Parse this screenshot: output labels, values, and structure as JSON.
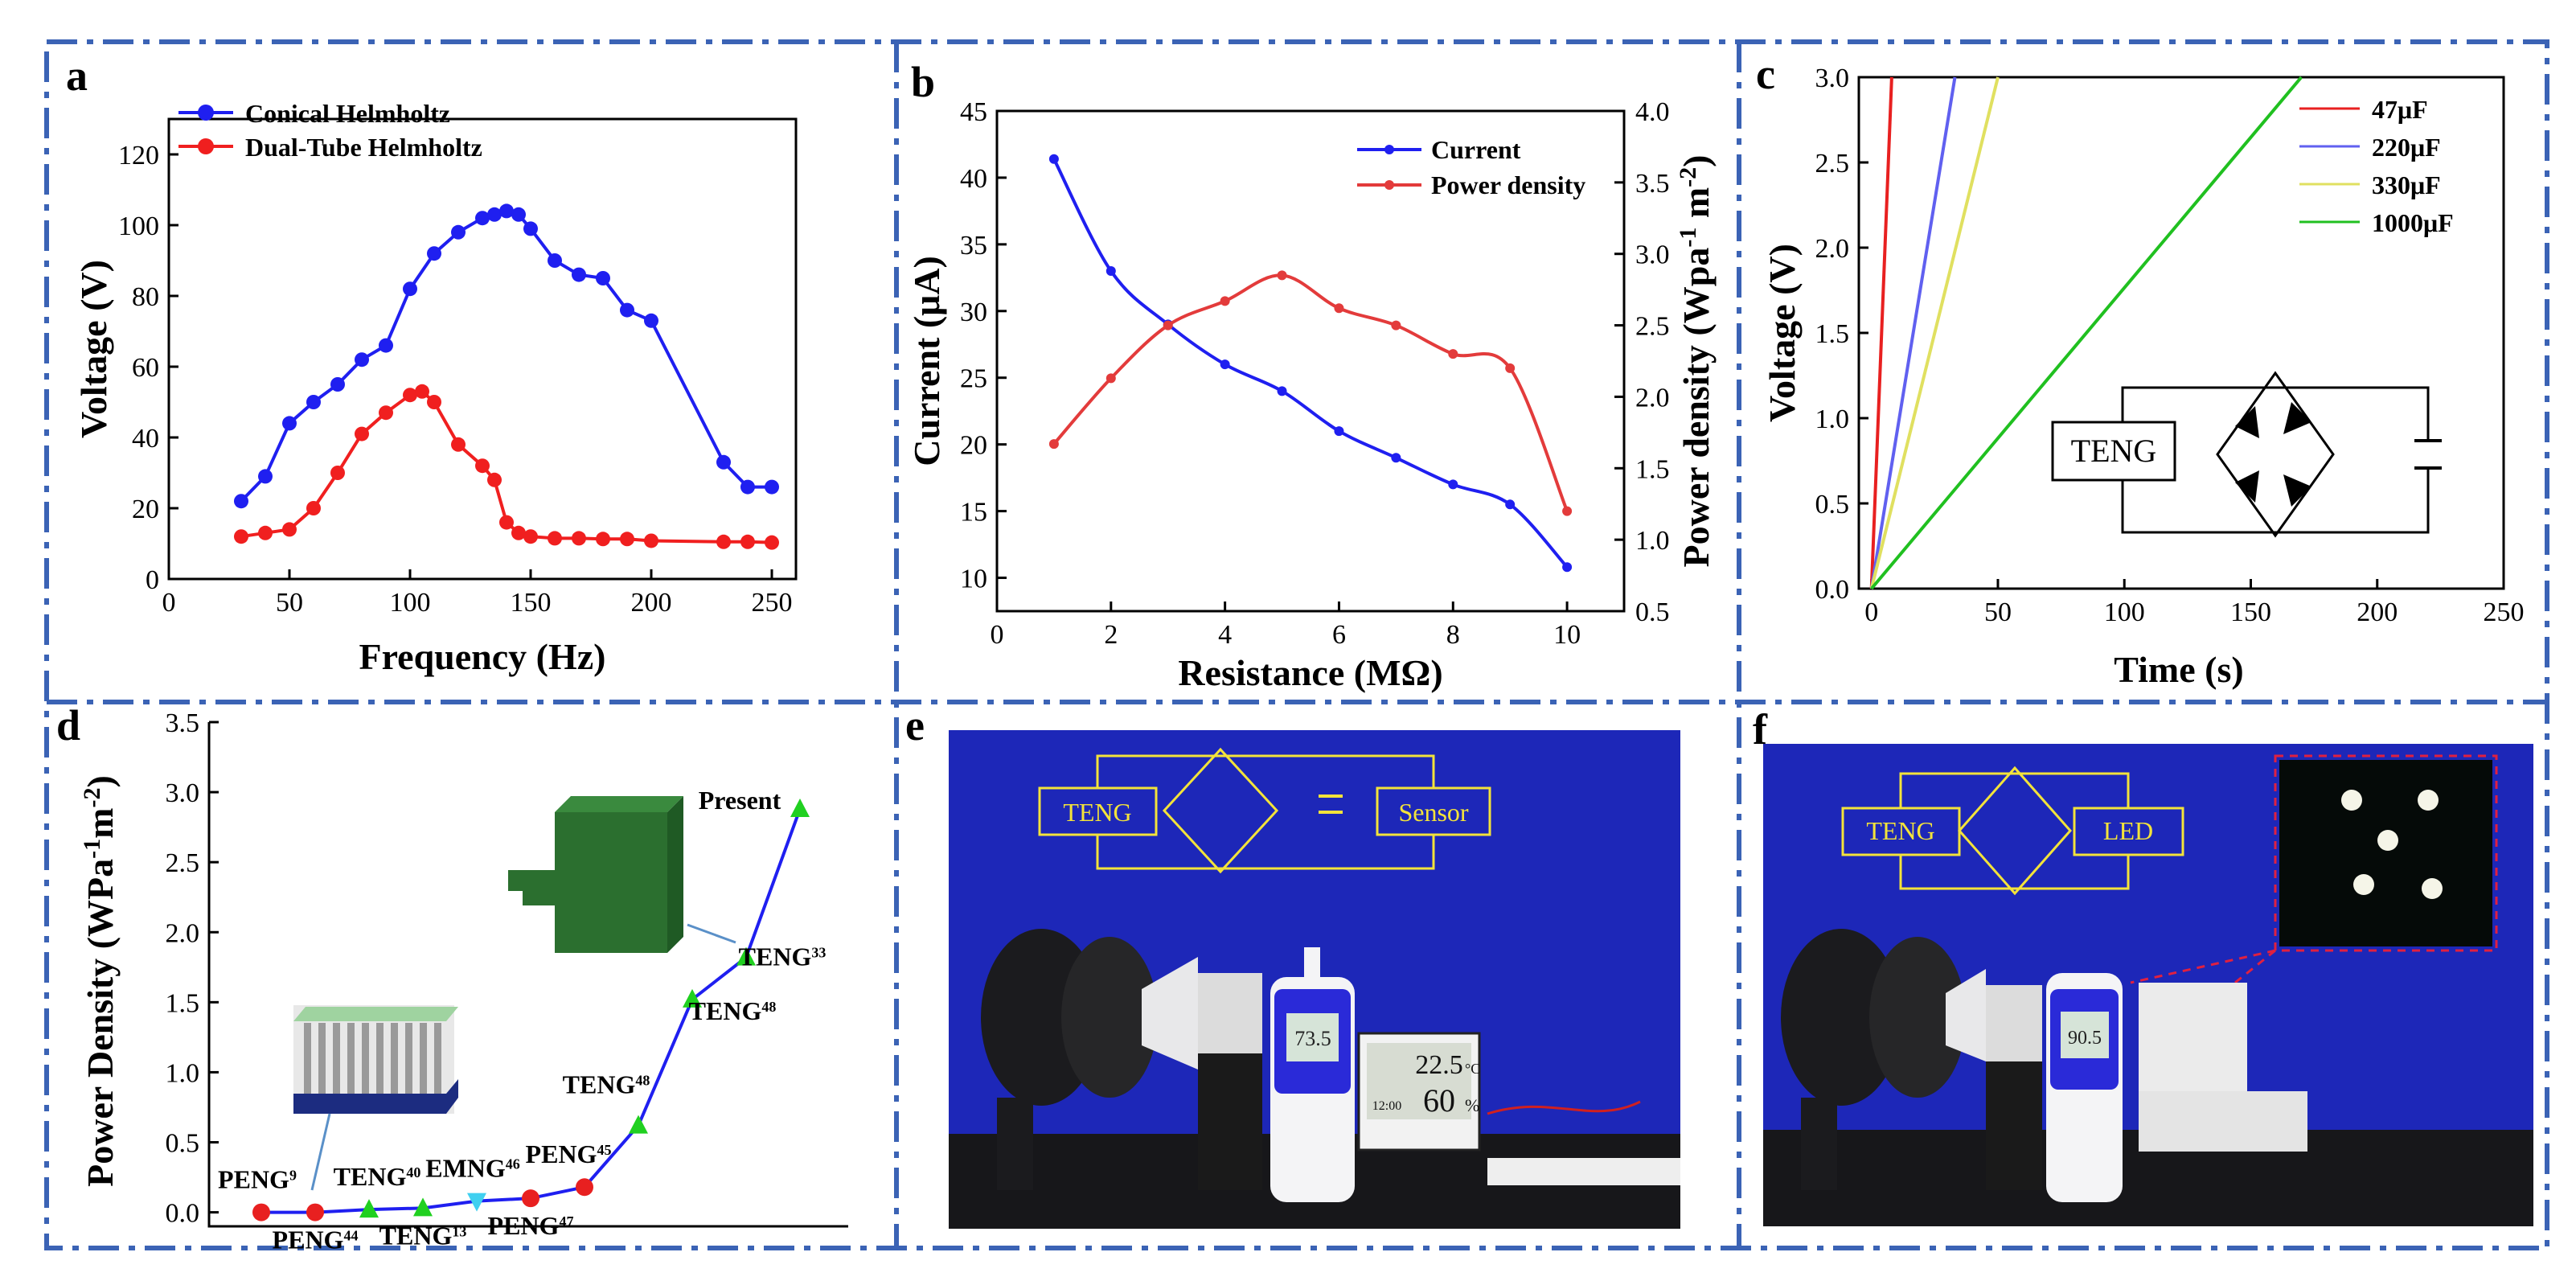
{
  "panels": {
    "a": "a",
    "b": "b",
    "c": "c",
    "d": "d",
    "e": "e",
    "f": "f"
  },
  "chart_data": [
    {
      "panel": "a",
      "type": "line",
      "xlabel": "Frequency (Hz)",
      "ylabel": "Voltage (V)",
      "xlim": [
        0,
        260
      ],
      "ylim": [
        0,
        130
      ],
      "xticks": [
        0,
        50,
        100,
        150,
        200,
        250
      ],
      "yticks": [
        0,
        20,
        40,
        60,
        80,
        100,
        120
      ],
      "legend_position": "top-left",
      "series": [
        {
          "name": "Conical Helmholtz",
          "color": "#1f1ff0",
          "x": [
            30,
            40,
            50,
            60,
            70,
            80,
            90,
            100,
            110,
            120,
            130,
            135,
            140,
            145,
            150,
            160,
            170,
            180,
            190,
            200,
            230,
            240,
            250
          ],
          "y": [
            22,
            29,
            44,
            50,
            55,
            62,
            66,
            82,
            92,
            98,
            102,
            103,
            104,
            103,
            99,
            90,
            86,
            85,
            76,
            73,
            33,
            26,
            26
          ]
        },
        {
          "name": "Dual-Tube Helmholtz",
          "color": "#f01f1f",
          "x": [
            30,
            40,
            50,
            60,
            70,
            80,
            90,
            100,
            105,
            110,
            120,
            130,
            135,
            140,
            145,
            150,
            160,
            170,
            180,
            190,
            200,
            230,
            240,
            250
          ],
          "y": [
            12,
            13,
            14,
            20,
            30,
            41,
            47,
            52,
            53,
            50,
            38,
            32,
            28,
            16,
            13,
            12,
            11.5,
            11.5,
            11.3,
            11.3,
            10.8,
            10.5,
            10.5,
            10.3
          ]
        }
      ]
    },
    {
      "panel": "b",
      "type": "line",
      "xlabel": "Resistance (MΩ)",
      "ylabel": "Current (μA)",
      "ylabel_right": "Power density (Wpa-1 m-2)",
      "ylabel_right_parts": {
        "a": "Power density (Wpa",
        "b": "-1",
        "c": " m",
        "d": "-2",
        "e": ")"
      },
      "xlim": [
        0,
        11
      ],
      "ylim": [
        7.5,
        45
      ],
      "ylim_right": [
        0.5,
        4.0
      ],
      "xticks": [
        0,
        2,
        4,
        6,
        8,
        10
      ],
      "yticks": [
        10,
        15,
        20,
        25,
        30,
        35,
        40,
        45
      ],
      "yticks_right": [
        "0.5",
        "1.0",
        "1.5",
        "2.0",
        "2.5",
        "3.0",
        "3.5",
        "4.0"
      ],
      "legend_position": "top-right",
      "series": [
        {
          "name": "Current",
          "color": "#1f1ff0",
          "axis": "left",
          "x": [
            1,
            2,
            3,
            4,
            5,
            6,
            7,
            8,
            9,
            10
          ],
          "y": [
            41.4,
            33,
            29,
            26,
            24,
            21,
            19,
            17,
            15.5,
            10.8
          ]
        },
        {
          "name": "Power density",
          "color": "#e33b3b",
          "axis": "right",
          "x": [
            1,
            2,
            3,
            4,
            5,
            6,
            7,
            8,
            9,
            10
          ],
          "y": [
            1.67,
            2.13,
            2.5,
            2.67,
            2.85,
            2.62,
            2.5,
            2.3,
            2.2,
            1.2
          ]
        }
      ]
    },
    {
      "panel": "c",
      "type": "line",
      "xlabel": "Time (s)",
      "ylabel": "Voltage (V)",
      "xlim": [
        -5,
        250
      ],
      "ylim": [
        0,
        3.0
      ],
      "xticks": [
        0,
        50,
        100,
        150,
        200,
        250
      ],
      "yticks": [
        "0.0",
        "0.5",
        "1.0",
        "1.5",
        "2.0",
        "2.5",
        "3.0"
      ],
      "legend_position": "top-right",
      "inset": {
        "teng_label": "TENG"
      },
      "series": [
        {
          "name": "47μF",
          "color": "#e82020",
          "x": [
            0,
            8
          ],
          "y": [
            0,
            3.0
          ]
        },
        {
          "name": "220μF",
          "color": "#6060f0",
          "x": [
            0,
            33
          ],
          "y": [
            0,
            3.0
          ]
        },
        {
          "name": "330μF",
          "color": "#e0e060",
          "x": [
            0,
            50
          ],
          "y": [
            0,
            3.0
          ]
        },
        {
          "name": "1000μF",
          "color": "#20c020",
          "x": [
            0,
            170
          ],
          "y": [
            0,
            3.0
          ]
        }
      ]
    },
    {
      "panel": "d",
      "type": "line",
      "xlabel": "",
      "ylabel": "Power Density (WPa-1m-2)",
      "ylabel_parts": {
        "a": "Power Density (WPa",
        "b": "-1",
        "c": "m",
        "d": "-2",
        "e": ")"
      },
      "ylim": [
        -0.1,
        3.5
      ],
      "yticks": [
        "0.0",
        "0.5",
        "1.0",
        "1.5",
        "2.0",
        "2.5",
        "3.0",
        "3.5"
      ],
      "points": [
        {
          "label": "PENG",
          "ref": "9",
          "y": 0.0,
          "marker": "circle",
          "color": "#e82020"
        },
        {
          "label": "PENG",
          "ref": "44",
          "y": 0.0,
          "marker": "circle",
          "color": "#e82020"
        },
        {
          "label": "TENG",
          "ref": "40",
          "y": 0.02,
          "marker": "triangle",
          "color": "#20d020"
        },
        {
          "label": "TENG",
          "ref": "13",
          "y": 0.03,
          "marker": "triangle",
          "color": "#20d020"
        },
        {
          "label": "EMNG",
          "ref": "46",
          "y": 0.08,
          "marker": "triangle-down",
          "color": "#40d0f0"
        },
        {
          "label": "PENG",
          "ref": "47",
          "y": 0.1,
          "marker": "circle",
          "color": "#e82020"
        },
        {
          "label": "PENG",
          "ref": "45",
          "y": 0.18,
          "marker": "circle",
          "color": "#e82020"
        },
        {
          "label": "TENG",
          "ref": "48",
          "y": 0.62,
          "marker": "triangle",
          "color": "#20d020"
        },
        {
          "label": "TENG",
          "ref": "48",
          "y": 1.52,
          "marker": "triangle",
          "color": "#20d020"
        },
        {
          "label": "TENG",
          "ref": "33",
          "y": 1.82,
          "marker": "triangle",
          "color": "#20d020"
        },
        {
          "label": "Present",
          "ref": "",
          "y": 2.88,
          "marker": "triangle",
          "color": "#20d020"
        }
      ]
    }
  ],
  "photo_e": {
    "teng": "TENG",
    "sensor": "Sensor",
    "meter_reading": "73.5",
    "temp": "22.5",
    "temp_unit": "°C",
    "hum": "60",
    "hum_unit": "%",
    "clock": "12:00"
  },
  "photo_f": {
    "teng": "TENG",
    "led": "LED",
    "meter_reading": "90.5"
  }
}
